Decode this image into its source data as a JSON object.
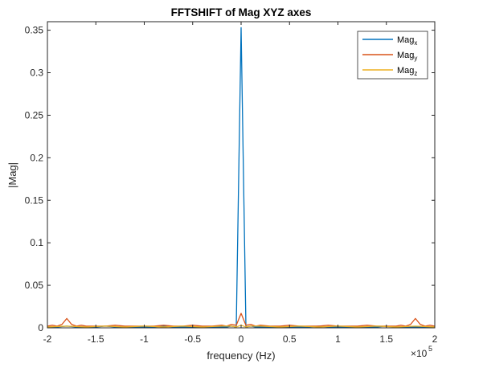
{
  "chart_data": {
    "type": "line",
    "title": "FFTSHIFT of Mag XYZ axes",
    "xlabel": "frequency (Hz)",
    "ylabel": "|Mag|",
    "x_exponent": "×10",
    "x_exponent_power": "5",
    "xlim": [
      -200000,
      200000
    ],
    "ylim": [
      0,
      0.36
    ],
    "xticks": [
      -200000,
      -150000,
      -100000,
      -50000,
      0,
      50000,
      100000,
      150000,
      200000
    ],
    "xtick_labels": [
      "-2",
      "-1.5",
      "-1",
      "-0.5",
      "0",
      "0.5",
      "1",
      "1.5",
      "2"
    ],
    "yticks": [
      0,
      0.05,
      0.1,
      0.15,
      0.2,
      0.25,
      0.3,
      0.35
    ],
    "ytick_labels": [
      "0",
      "0.05",
      "0.1",
      "0.15",
      "0.2",
      "0.25",
      "0.3",
      "0.35"
    ],
    "grid": false,
    "legend_position": "top-right",
    "series": [
      {
        "name": "Mag",
        "subscript": "x",
        "color": "#0072BD",
        "x": [
          -200000,
          -190000,
          -180000,
          -170000,
          -160000,
          -150000,
          -140000,
          -130000,
          -120000,
          -110000,
          -100000,
          -90000,
          -80000,
          -70000,
          -60000,
          -50000,
          -40000,
          -30000,
          -20000,
          -15000,
          -10000,
          -5000,
          0,
          5000,
          10000,
          15000,
          20000,
          30000,
          40000,
          50000,
          60000,
          70000,
          80000,
          90000,
          100000,
          110000,
          120000,
          130000,
          140000,
          150000,
          160000,
          170000,
          180000,
          190000,
          200000
        ],
        "y": [
          0.001,
          0.001,
          0.002,
          0.001,
          0.001,
          0.001,
          0.002,
          0.001,
          0.001,
          0.001,
          0.001,
          0.001,
          0.002,
          0.001,
          0.001,
          0.001,
          0.001,
          0.001,
          0.001,
          0.001,
          0.002,
          0.001,
          0.353,
          0.001,
          0.002,
          0.001,
          0.001,
          0.001,
          0.001,
          0.001,
          0.001,
          0.001,
          0.002,
          0.001,
          0.001,
          0.001,
          0.001,
          0.001,
          0.001,
          0.002,
          0.001,
          0.001,
          0.001,
          0.001,
          0.001
        ]
      },
      {
        "name": "Mag",
        "subscript": "y",
        "color": "#D95319",
        "x": [
          -200000,
          -195000,
          -190000,
          -185000,
          -180000,
          -175000,
          -170000,
          -165000,
          -160000,
          -150000,
          -140000,
          -130000,
          -120000,
          -110000,
          -100000,
          -90000,
          -80000,
          -70000,
          -60000,
          -50000,
          -40000,
          -30000,
          -20000,
          -15000,
          -10000,
          -5000,
          0,
          5000,
          10000,
          15000,
          20000,
          30000,
          40000,
          50000,
          60000,
          70000,
          80000,
          90000,
          100000,
          110000,
          120000,
          130000,
          140000,
          150000,
          160000,
          165000,
          170000,
          175000,
          180000,
          185000,
          190000,
          195000,
          200000
        ],
        "y": [
          0.002,
          0.003,
          0.002,
          0.004,
          0.011,
          0.004,
          0.002,
          0.003,
          0.002,
          0.002,
          0.002,
          0.003,
          0.002,
          0.002,
          0.002,
          0.002,
          0.003,
          0.002,
          0.002,
          0.003,
          0.002,
          0.002,
          0.003,
          0.002,
          0.004,
          0.003,
          0.017,
          0.003,
          0.004,
          0.002,
          0.003,
          0.002,
          0.002,
          0.003,
          0.002,
          0.002,
          0.002,
          0.003,
          0.002,
          0.002,
          0.002,
          0.003,
          0.002,
          0.002,
          0.002,
          0.003,
          0.002,
          0.004,
          0.011,
          0.004,
          0.002,
          0.003,
          0.002
        ]
      },
      {
        "name": "Mag",
        "subscript": "z",
        "color": "#EDB120",
        "x": [
          -200000,
          -180000,
          -160000,
          -140000,
          -120000,
          -100000,
          -80000,
          -60000,
          -40000,
          -20000,
          -10000,
          -5000,
          0,
          5000,
          10000,
          20000,
          40000,
          60000,
          80000,
          100000,
          120000,
          140000,
          160000,
          180000,
          200000
        ],
        "y": [
          0.001,
          0.002,
          0.001,
          0.002,
          0.001,
          0.002,
          0.001,
          0.002,
          0.001,
          0.002,
          0.002,
          0.001,
          0.003,
          0.001,
          0.002,
          0.002,
          0.001,
          0.002,
          0.001,
          0.002,
          0.001,
          0.002,
          0.001,
          0.002,
          0.001
        ]
      }
    ]
  }
}
